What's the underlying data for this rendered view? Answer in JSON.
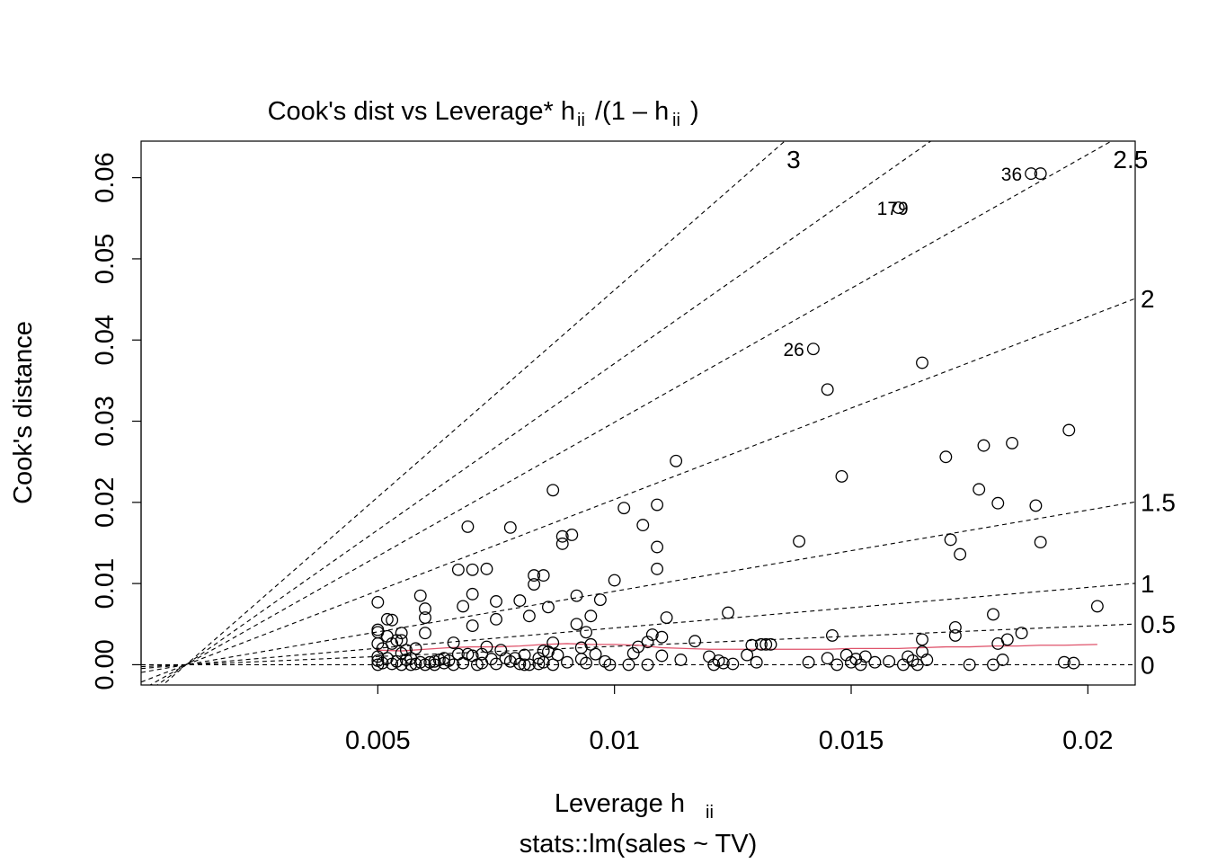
{
  "chart_data": {
    "type": "scatter",
    "title": "Cook's dist vs Leverage* h",
    "title_sub": "ii",
    "title_mid": "/(1 – h",
    "title_sub2": "ii",
    "title_end": ")",
    "xlabel": "Leverage  h",
    "xlabel_sub": "ii",
    "ylabel": "Cook's distance",
    "subtitle": "stats::lm(sales ~ TV)",
    "xlim": [
      0.0,
      0.021
    ],
    "ylim": [
      -0.0025,
      0.0645
    ],
    "x_ticks": [
      {
        "value": 0.005,
        "label": "0.005"
      },
      {
        "value": 0.01,
        "label": "0.01"
      },
      {
        "value": 0.015,
        "label": "0.015"
      },
      {
        "value": 0.02,
        "label": "0.02"
      }
    ],
    "y_ticks": [
      {
        "value": 0.0,
        "label": "0.00"
      },
      {
        "value": 0.01,
        "label": "0.01"
      },
      {
        "value": 0.02,
        "label": "0.02"
      },
      {
        "value": 0.03,
        "label": "0.03"
      },
      {
        "value": 0.04,
        "label": "0.04"
      },
      {
        "value": 0.05,
        "label": "0.05"
      },
      {
        "value": 0.06,
        "label": "0.06"
      }
    ],
    "contours": [
      {
        "label": "0",
        "slope": 0.0
      },
      {
        "label": "0.5",
        "slope": 0.25
      },
      {
        "label": "1",
        "slope": 0.5
      },
      {
        "label": "1.5",
        "slope": 1.0
      },
      {
        "label": "2",
        "slope": 2.25
      },
      {
        "label": "2.5",
        "slope": 3.3
      },
      {
        "label": "3",
        "slope": 5.1
      }
    ],
    "contour_extra_slope": 4.1,
    "contour_origin": [
      0.00095,
      0.0
    ],
    "points": [
      [
        0.005,
        0.0077
      ],
      [
        0.005,
        0.0043
      ],
      [
        0.005,
        0.004
      ],
      [
        0.005,
        0.0026
      ],
      [
        0.005,
        0.001
      ],
      [
        0.005,
        0.0005
      ],
      [
        0.005,
        0.0
      ],
      [
        0.0051,
        0.002
      ],
      [
        0.0051,
        0.0002
      ],
      [
        0.0052,
        0.0056
      ],
      [
        0.0052,
        0.0035
      ],
      [
        0.0052,
        0.0008
      ],
      [
        0.0053,
        0.0055
      ],
      [
        0.0053,
        0.0026
      ],
      [
        0.0053,
        0.0001
      ],
      [
        0.0054,
        0.003
      ],
      [
        0.0054,
        0.0004
      ],
      [
        0.0055,
        0.0039
      ],
      [
        0.0055,
        0.003
      ],
      [
        0.0055,
        0.0014
      ],
      [
        0.0055,
        0.0
      ],
      [
        0.0056,
        0.0018
      ],
      [
        0.0056,
        0.0006
      ],
      [
        0.0057,
        0.0008
      ],
      [
        0.0057,
        0.0
      ],
      [
        0.0058,
        0.0001
      ],
      [
        0.0058,
        0.002
      ],
      [
        0.0059,
        0.0085
      ],
      [
        0.0059,
        0.0003
      ],
      [
        0.006,
        0.0069
      ],
      [
        0.006,
        0.0058
      ],
      [
        0.006,
        0.0039
      ],
      [
        0.006,
        0.0
      ],
      [
        0.0061,
        0.0003
      ],
      [
        0.0062,
        0.0
      ],
      [
        0.0062,
        0.0004
      ],
      [
        0.0063,
        0.0006
      ],
      [
        0.0064,
        0.0008
      ],
      [
        0.0064,
        0.0002
      ],
      [
        0.0065,
        0.0005
      ],
      [
        0.0066,
        0.0027
      ],
      [
        0.0066,
        0.0
      ],
      [
        0.0067,
        0.0117
      ],
      [
        0.0067,
        0.0013
      ],
      [
        0.0068,
        0.0072
      ],
      [
        0.0068,
        0.0002
      ],
      [
        0.0069,
        0.017
      ],
      [
        0.0069,
        0.0013
      ],
      [
        0.007,
        0.0117
      ],
      [
        0.007,
        0.0087
      ],
      [
        0.007,
        0.0048
      ],
      [
        0.007,
        0.0011
      ],
      [
        0.0071,
        0.0
      ],
      [
        0.0072,
        0.0013
      ],
      [
        0.0072,
        0.0002
      ],
      [
        0.0073,
        0.0022
      ],
      [
        0.0073,
        0.0118
      ],
      [
        0.0074,
        0.0007
      ],
      [
        0.0075,
        0.0078
      ],
      [
        0.0075,
        0.0056
      ],
      [
        0.0075,
        0.0001
      ],
      [
        0.0076,
        0.0018
      ],
      [
        0.0077,
        0.0008
      ],
      [
        0.0078,
        0.0004
      ],
      [
        0.0078,
        0.0169
      ],
      [
        0.0079,
        0.0008
      ],
      [
        0.008,
        0.0079
      ],
      [
        0.008,
        0.0001
      ],
      [
        0.0081,
        0.0012
      ],
      [
        0.0081,
        0.0
      ],
      [
        0.0082,
        0.006
      ],
      [
        0.0082,
        0.0
      ],
      [
        0.0083,
        0.011
      ],
      [
        0.0083,
        0.0099
      ],
      [
        0.0084,
        0.0008
      ],
      [
        0.0084,
        0.0001
      ],
      [
        0.0085,
        0.011
      ],
      [
        0.0085,
        0.0017
      ],
      [
        0.0085,
        0.0003
      ],
      [
        0.0086,
        0.0071
      ],
      [
        0.0086,
        0.0016
      ],
      [
        0.0087,
        0.0215
      ],
      [
        0.0087,
        0.0027
      ],
      [
        0.0087,
        0.0
      ],
      [
        0.0088,
        0.0012
      ],
      [
        0.0089,
        0.0158
      ],
      [
        0.0089,
        0.0149
      ],
      [
        0.009,
        0.0003
      ],
      [
        0.0091,
        0.016
      ],
      [
        0.0092,
        0.005
      ],
      [
        0.0092,
        0.0085
      ],
      [
        0.0093,
        0.0021
      ],
      [
        0.0093,
        0.0007
      ],
      [
        0.0094,
        0.004
      ],
      [
        0.0094,
        0.0002
      ],
      [
        0.0095,
        0.006
      ],
      [
        0.0095,
        0.0025
      ],
      [
        0.0096,
        0.0013
      ],
      [
        0.0097,
        0.008
      ],
      [
        0.0098,
        0.0004
      ],
      [
        0.0099,
        0.0
      ],
      [
        0.01,
        0.0104
      ],
      [
        0.0102,
        0.0193
      ],
      [
        0.0103,
        0.0
      ],
      [
        0.0104,
        0.0014
      ],
      [
        0.0105,
        0.0022
      ],
      [
        0.0106,
        0.0172
      ],
      [
        0.0107,
        0.0
      ],
      [
        0.0107,
        0.0028
      ],
      [
        0.0108,
        0.0037
      ],
      [
        0.0109,
        0.0197
      ],
      [
        0.0109,
        0.0118
      ],
      [
        0.0109,
        0.0145
      ],
      [
        0.011,
        0.0034
      ],
      [
        0.011,
        0.0011
      ],
      [
        0.0111,
        0.0058
      ],
      [
        0.0113,
        0.0251
      ],
      [
        0.0114,
        0.0006
      ],
      [
        0.0117,
        0.0029
      ],
      [
        0.012,
        0.001
      ],
      [
        0.0121,
        0.0
      ],
      [
        0.0122,
        0.0005
      ],
      [
        0.0123,
        0.0002
      ],
      [
        0.0124,
        0.0064
      ],
      [
        0.0125,
        0.0001
      ],
      [
        0.0128,
        0.0012
      ],
      [
        0.0129,
        0.0024
      ],
      [
        0.013,
        0.0003
      ],
      [
        0.0131,
        0.0025
      ],
      [
        0.0132,
        0.0025
      ],
      [
        0.0133,
        0.0025
      ],
      [
        0.0139,
        0.0152
      ],
      [
        0.0141,
        0.0003
      ],
      [
        0.0142,
        0.0389
      ],
      [
        0.0145,
        0.0339
      ],
      [
        0.0145,
        0.0008
      ],
      [
        0.0146,
        0.0036
      ],
      [
        0.0147,
        0.0
      ],
      [
        0.0148,
        0.0232
      ],
      [
        0.0149,
        0.0012
      ],
      [
        0.015,
        0.0003
      ],
      [
        0.0151,
        0.0007
      ],
      [
        0.0152,
        0.0
      ],
      [
        0.0153,
        0.001
      ],
      [
        0.0155,
        0.0003
      ],
      [
        0.0158,
        0.0004
      ],
      [
        0.016,
        0.0563
      ],
      [
        0.0161,
        0.0
      ],
      [
        0.0162,
        0.001
      ],
      [
        0.0163,
        0.0005
      ],
      [
        0.0164,
        0.0
      ],
      [
        0.0165,
        0.0031
      ],
      [
        0.0165,
        0.0016
      ],
      [
        0.0165,
        0.0372
      ],
      [
        0.0166,
        0.0006
      ],
      [
        0.017,
        0.0256
      ],
      [
        0.0171,
        0.0154
      ],
      [
        0.0172,
        0.0046
      ],
      [
        0.0172,
        0.0036
      ],
      [
        0.0173,
        0.0136
      ],
      [
        0.0175,
        0.0
      ],
      [
        0.0177,
        0.0216
      ],
      [
        0.0178,
        0.027
      ],
      [
        0.018,
        0.0062
      ],
      [
        0.0181,
        0.0199
      ],
      [
        0.0181,
        0.0026
      ],
      [
        0.0182,
        0.0006
      ],
      [
        0.0183,
        0.0031
      ],
      [
        0.0184,
        0.0273
      ],
      [
        0.0186,
        0.0039
      ],
      [
        0.0188,
        0.0605
      ],
      [
        0.0189,
        0.0196
      ],
      [
        0.019,
        0.0151
      ],
      [
        0.019,
        0.0605
      ],
      [
        0.0195,
        0.0003
      ],
      [
        0.0196,
        0.0289
      ],
      [
        0.0197,
        0.0002
      ],
      [
        0.0202,
        0.0072
      ],
      [
        0.018,
        0.0
      ]
    ],
    "point_labels": [
      {
        "label": "36",
        "x": 0.0188,
        "y": 0.0605
      },
      {
        "label": "179",
        "x": 0.0164,
        "y": 0.0563
      },
      {
        "label": "26",
        "x": 0.0142,
        "y": 0.0389
      }
    ],
    "smooth_line": [
      [
        0.005,
        0.0018
      ],
      [
        0.0055,
        0.0017
      ],
      [
        0.006,
        0.0019
      ],
      [
        0.0065,
        0.0021
      ],
      [
        0.007,
        0.0022
      ],
      [
        0.0075,
        0.0022
      ],
      [
        0.008,
        0.0023
      ],
      [
        0.0085,
        0.0025
      ],
      [
        0.009,
        0.0026
      ],
      [
        0.0095,
        0.0025
      ],
      [
        0.01,
        0.0025
      ],
      [
        0.0105,
        0.0024
      ],
      [
        0.011,
        0.0021
      ],
      [
        0.0115,
        0.002
      ],
      [
        0.012,
        0.0019
      ],
      [
        0.0125,
        0.0019
      ],
      [
        0.013,
        0.0019
      ],
      [
        0.0135,
        0.0019
      ],
      [
        0.014,
        0.0019
      ],
      [
        0.0145,
        0.0019
      ],
      [
        0.015,
        0.002
      ],
      [
        0.0155,
        0.002
      ],
      [
        0.016,
        0.002
      ],
      [
        0.0165,
        0.0021
      ],
      [
        0.017,
        0.0022
      ],
      [
        0.0175,
        0.0022
      ],
      [
        0.018,
        0.0023
      ],
      [
        0.0185,
        0.0023
      ],
      [
        0.019,
        0.0024
      ],
      [
        0.0195,
        0.0024
      ],
      [
        0.0202,
        0.0025
      ]
    ],
    "smooth_color": "#DF536B",
    "grid": false,
    "legend": "none"
  }
}
